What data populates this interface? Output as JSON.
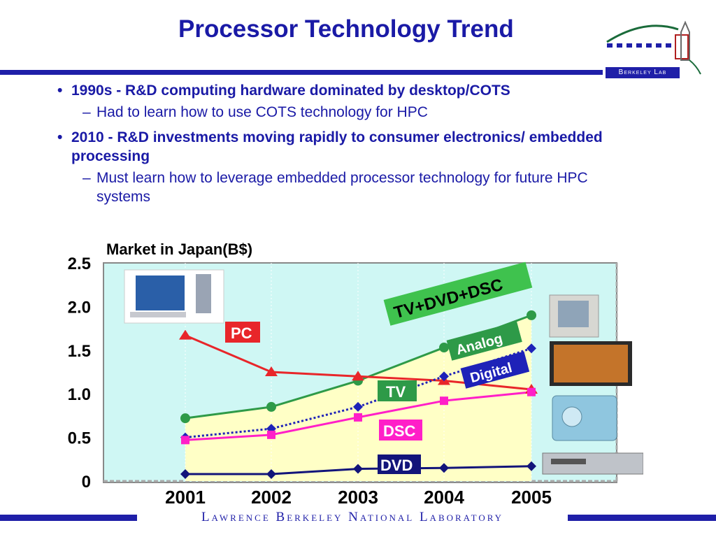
{
  "slide": {
    "title": "Processor Technology Trend",
    "logo_text": "Berkeley Lab",
    "footer": "Lawrence Berkeley National Laboratory",
    "bullets": [
      {
        "text": "1990s - R&D computing hardware dominated by desktop/COTS",
        "sub": [
          "Had to learn how to use COTS technology for HPC"
        ]
      },
      {
        "text": "2010 - R&D investments moving rapidly to consumer electronics/ embedded processing",
        "sub": [
          "Must learn how to leverage embedded processor technology for future HPC systems"
        ]
      }
    ],
    "bullet_glyph": "•",
    "dash_glyph": "–"
  },
  "chart_data": {
    "type": "area",
    "title": "Market in Japan(B$)",
    "xlabel": "",
    "ylabel": "",
    "categories": [
      "2001",
      "2002",
      "2003",
      "2004",
      "2005"
    ],
    "ylim": [
      0,
      2.5
    ],
    "yticks": [
      "2.5",
      "2.0",
      "1.5",
      "1.0",
      "0.5",
      "0"
    ],
    "series": [
      {
        "name": "TV+DVD+DSC",
        "values": [
          0.72,
          0.85,
          1.15,
          1.53,
          1.9
        ],
        "color": "#2e9a48",
        "marker": "circle"
      },
      {
        "name": "PC",
        "values": [
          1.67,
          1.25,
          1.2,
          1.15,
          1.05
        ],
        "color": "#e8262a",
        "marker": "triangle"
      },
      {
        "name": "TV",
        "values": [
          0.5,
          0.6,
          0.85,
          1.2,
          1.52
        ],
        "color": "#1e22b8",
        "marker": "diamond",
        "dotted": true
      },
      {
        "name": "DSC",
        "values": [
          0.47,
          0.53,
          0.73,
          0.92,
          1.02
        ],
        "color": "#ff1fc8",
        "marker": "square"
      },
      {
        "name": "DVD",
        "values": [
          0.08,
          0.08,
          0.14,
          0.15,
          0.17
        ],
        "color": "#12147a",
        "marker": "diamond"
      }
    ],
    "labels": {
      "total": "TV+DVD+DSC",
      "pc": "PC",
      "analog": "Analog",
      "digital": "Digital",
      "tv": "TV",
      "dsc": "DSC",
      "dvd": "DVD"
    },
    "colors": {
      "plot_bg": "#cff7f4",
      "area_fill": "#ffffc6",
      "axis_text": "#000000"
    }
  }
}
